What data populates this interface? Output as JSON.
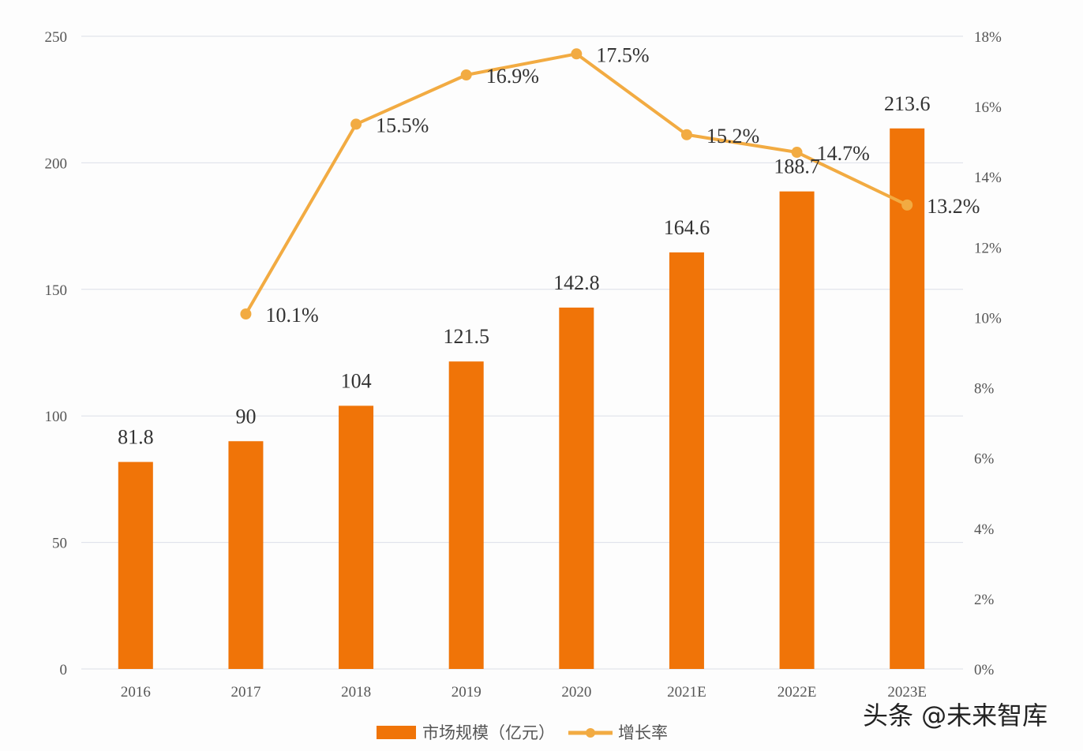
{
  "chart_data": {
    "type": "bar+line",
    "categories": [
      "2016",
      "2017",
      "2018",
      "2019",
      "2020",
      "2021E",
      "2022E",
      "2023E"
    ],
    "series": [
      {
        "name": "市场规模（亿元）",
        "type": "bar",
        "axis": "left",
        "values": [
          81.8,
          90,
          104,
          121.5,
          142.8,
          164.6,
          188.7,
          213.6
        ],
        "labels": [
          "81.8",
          "90",
          "104",
          "121.5",
          "142.8",
          "164.6",
          "188.7",
          "213.6"
        ]
      },
      {
        "name": "增长率",
        "type": "line",
        "axis": "right",
        "values": [
          null,
          10.1,
          15.5,
          16.9,
          17.5,
          15.2,
          14.7,
          13.2
        ],
        "labels": [
          "",
          "10.1%",
          "15.5%",
          "16.9%",
          "17.5%",
          "15.2%",
          "14.7%",
          "13.2%"
        ]
      }
    ],
    "y_left": {
      "range": [
        0,
        250
      ],
      "ticks": [
        "0",
        "50",
        "100",
        "150",
        "200",
        "250"
      ]
    },
    "y_right": {
      "range": [
        0,
        18
      ],
      "ticks": [
        "0%",
        "2%",
        "4%",
        "6%",
        "8%",
        "10%",
        "12%",
        "14%",
        "16%",
        "18%"
      ]
    },
    "grid": true,
    "legend_position": "bottom",
    "colors": {
      "bar": "#f07408",
      "line": "#f2ab42",
      "grid": "#dcdfe8"
    }
  },
  "watermark": "头条 @未来智库"
}
